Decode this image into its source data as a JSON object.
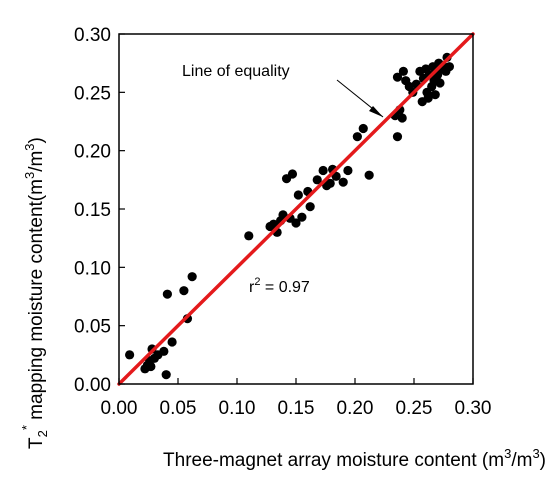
{
  "chart_data": {
    "type": "scatter",
    "title": "",
    "xlabel": {
      "main": "Three-magnet array moisture content (m",
      "sup1": "3",
      "mid": "/m",
      "sup2": "3",
      "end": ")"
    },
    "ylabel": {
      "t": "T",
      "sub": "2",
      "sup": "*",
      "main": " mapping moisture content(m",
      "sup1": "3",
      "mid": "/m",
      "sup2": "3",
      "end": ")"
    },
    "xlim": [
      0.0,
      0.3
    ],
    "ylim": [
      0.0,
      0.3
    ],
    "xticks": [
      "0.00",
      "0.05",
      "0.10",
      "0.15",
      "0.20",
      "0.25",
      "0.30"
    ],
    "yticks": [
      "0.00",
      "0.05",
      "0.10",
      "0.15",
      "0.20",
      "0.25",
      "0.30"
    ],
    "grid": false,
    "line": {
      "name": "Line of equality",
      "x": [
        0.0,
        0.3
      ],
      "y": [
        0.0,
        0.3
      ],
      "color": "#e41a1c"
    },
    "annotations": {
      "line_label": "Line of equality",
      "r2_prefix": "r",
      "r2_sup": "2",
      "r2_value": " = 0.97"
    },
    "series": [
      {
        "marker_color": "#000000",
        "points": [
          [
            0.009,
            0.025
          ],
          [
            0.022,
            0.013
          ],
          [
            0.024,
            0.016
          ],
          [
            0.026,
            0.02
          ],
          [
            0.027,
            0.015
          ],
          [
            0.028,
            0.03
          ],
          [
            0.03,
            0.022
          ],
          [
            0.033,
            0.025
          ],
          [
            0.038,
            0.028
          ],
          [
            0.04,
            0.008
          ],
          [
            0.041,
            0.077
          ],
          [
            0.045,
            0.036
          ],
          [
            0.055,
            0.08
          ],
          [
            0.058,
            0.056
          ],
          [
            0.062,
            0.092
          ],
          [
            0.11,
            0.127
          ],
          [
            0.128,
            0.135
          ],
          [
            0.131,
            0.137
          ],
          [
            0.134,
            0.13
          ],
          [
            0.137,
            0.14
          ],
          [
            0.139,
            0.145
          ],
          [
            0.142,
            0.176
          ],
          [
            0.145,
            0.142
          ],
          [
            0.147,
            0.18
          ],
          [
            0.15,
            0.138
          ],
          [
            0.152,
            0.162
          ],
          [
            0.155,
            0.143
          ],
          [
            0.16,
            0.165
          ],
          [
            0.162,
            0.152
          ],
          [
            0.168,
            0.175
          ],
          [
            0.173,
            0.183
          ],
          [
            0.176,
            0.17
          ],
          [
            0.179,
            0.172
          ],
          [
            0.181,
            0.184
          ],
          [
            0.184,
            0.178
          ],
          [
            0.19,
            0.173
          ],
          [
            0.194,
            0.183
          ],
          [
            0.202,
            0.212
          ],
          [
            0.207,
            0.219
          ],
          [
            0.212,
            0.179
          ],
          [
            0.234,
            0.23
          ],
          [
            0.236,
            0.212
          ],
          [
            0.238,
            0.235
          ],
          [
            0.24,
            0.228
          ],
          [
            0.236,
            0.263
          ],
          [
            0.241,
            0.268
          ],
          [
            0.243,
            0.26
          ],
          [
            0.246,
            0.255
          ],
          [
            0.249,
            0.25
          ],
          [
            0.252,
            0.257
          ],
          [
            0.255,
            0.268
          ],
          [
            0.257,
            0.242
          ],
          [
            0.258,
            0.262
          ],
          [
            0.26,
            0.27
          ],
          [
            0.261,
            0.25
          ],
          [
            0.262,
            0.245
          ],
          [
            0.263,
            0.265
          ],
          [
            0.265,
            0.255
          ],
          [
            0.266,
            0.272
          ],
          [
            0.267,
            0.26
          ],
          [
            0.268,
            0.248
          ],
          [
            0.269,
            0.268
          ],
          [
            0.27,
            0.265
          ],
          [
            0.271,
            0.275
          ],
          [
            0.272,
            0.258
          ],
          [
            0.273,
            0.27
          ],
          [
            0.275,
            0.272
          ],
          [
            0.277,
            0.268
          ],
          [
            0.278,
            0.28
          ],
          [
            0.28,
            0.272
          ]
        ]
      }
    ]
  }
}
